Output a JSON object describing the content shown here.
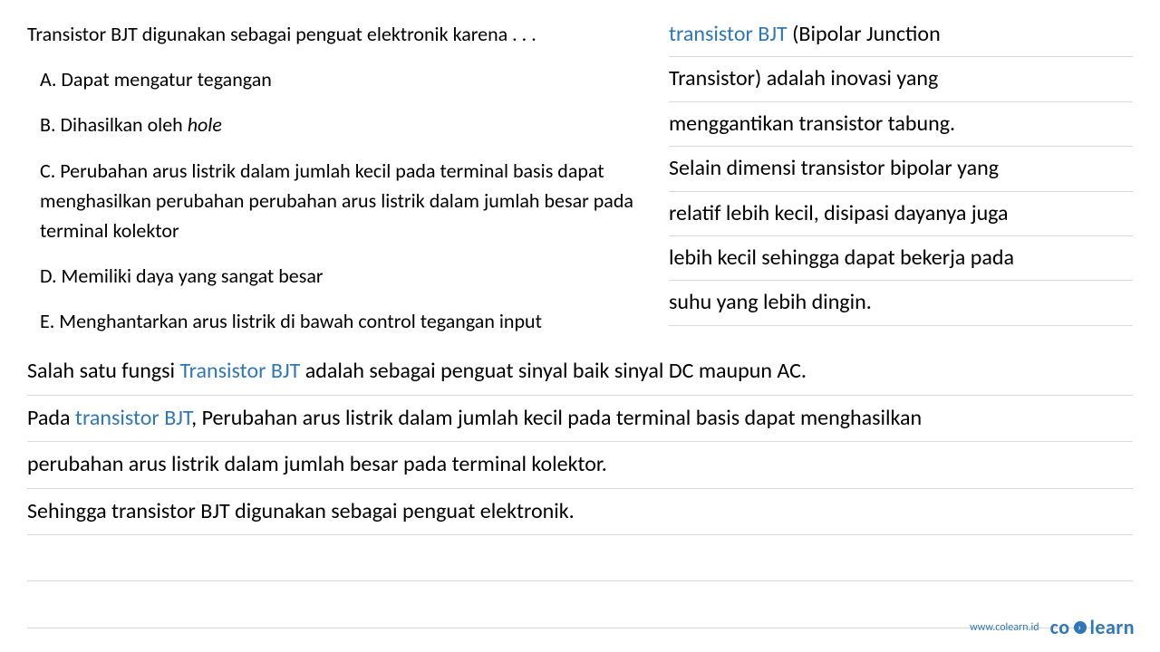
{
  "colors": {
    "text": "#000000",
    "link": "#2f77b9",
    "rule": "#d9d9d9",
    "background": "#ffffff"
  },
  "typography": {
    "question_fontsize": 22,
    "explain_fontsize": 24,
    "footer_site_fontsize": 12,
    "brand_fontsize": 22
  },
  "question": {
    "stem": "Transistor BJT digunakan sebagai penguat elektronik karena . . .",
    "options": {
      "A": "A. Dapat mengatur tegangan",
      "B_pre": "B. Dihasilkan oleh ",
      "B_ital": "hole",
      "C": "C. Perubahan arus listrik dalam jumlah kecil pada terminal basis dapat menghasilkan perubahan perubahan arus listrik dalam jumlah besar pada terminal kolektor",
      "D": "D. Memiliki daya yang sangat besar",
      "E": "E. Menghantarkan arus listrik di bawah control tegangan input"
    }
  },
  "right": {
    "l1_link": "transistor BJT",
    "l1_rest": " (Bipolar Junction",
    "l2": "Transistor) adalah inovasi yang",
    "l3": "menggantikan transistor tabung.",
    "l4": "Selain dimensi transistor bipolar yang",
    "l5": "relatif lebih kecil, disipasi dayanya juga",
    "l6": "lebih kecil sehingga dapat bekerja pada",
    "l7": "suhu yang lebih dingin."
  },
  "bottom": {
    "l1_pre": "Salah satu fungsi ",
    "l1_link": "Transistor BJT",
    "l1_post": " adalah sebagai penguat sinyal baik sinyal DC maupun AC.",
    "l2_pre": "Pada ",
    "l2_link": "transistor BJT",
    "l2_post": ", Perubahan arus listrik dalam jumlah kecil pada terminal basis dapat menghasilkan",
    "l3": "perubahan arus listrik dalam jumlah besar pada terminal kolektor.",
    "l4": "Sehingga transistor BJT digunakan sebagai penguat elektronik.",
    "l5": "",
    "l6": ""
  },
  "footer": {
    "site": "www.colearn.id",
    "brand_left": "co",
    "brand_right": "learn"
  }
}
